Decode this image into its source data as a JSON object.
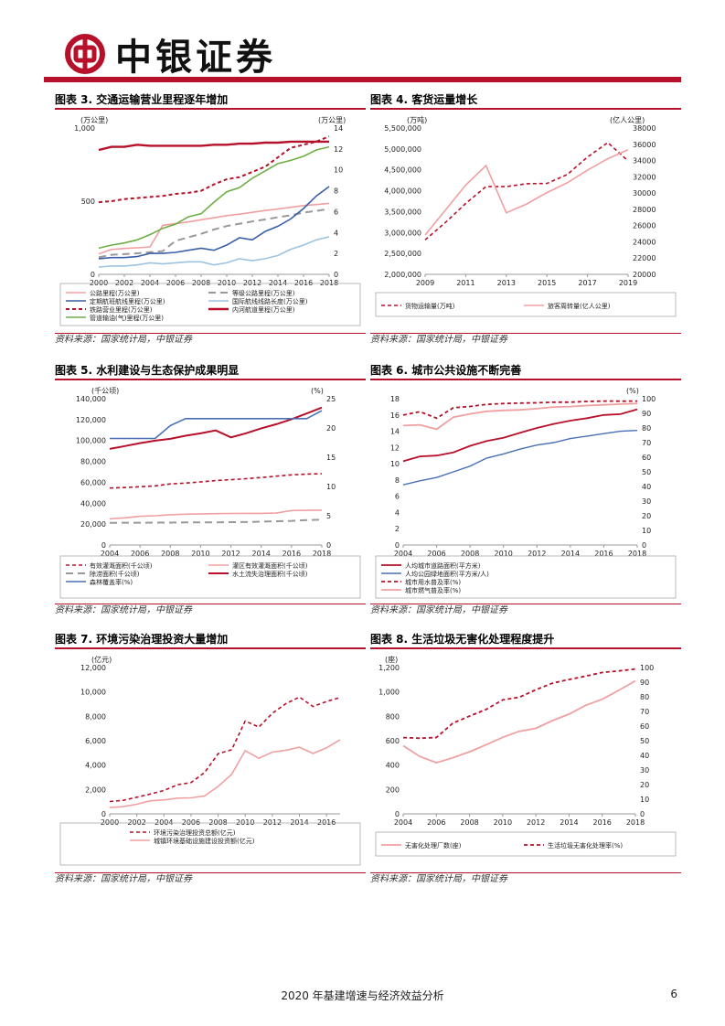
{
  "header": {
    "logo_text": "中银证券",
    "brand_color": "#b7102a"
  },
  "charts": {
    "c3": {
      "title": "图表 3. 交通运输营业里程逐年增加",
      "source": "资料来源：国家统计局，中银证券",
      "left_unit": "(万公里)",
      "right_unit": "(万公里)",
      "x_ticks": [
        "2000",
        "2002",
        "2004",
        "2006",
        "2008",
        "2010",
        "2012",
        "2014",
        "2016",
        "2018"
      ],
      "left_ticks": [
        "0",
        "500",
        "1,000"
      ],
      "right_ticks": [
        "0",
        "2",
        "4",
        "6",
        "8",
        "10",
        "12",
        "14"
      ],
      "legend": [
        "公路里程(万公里)",
        "等级公路里程(万公里)",
        "定期航班航线里程(万公里)",
        "国际航线线路长度(万公里)",
        "铁路营业里程(万公里)",
        "内河航道里程(万公里)",
        "管道输油(气)里程(万公里)"
      ]
    },
    "c4": {
      "title": "图表 4. 客货运量增长",
      "source": "资料来源：国家统计局，中银证券",
      "left_unit": "(万吨)",
      "right_unit": "(亿人公里)",
      "x_ticks": [
        "2009",
        "2011",
        "2013",
        "2015",
        "2017",
        "2019"
      ],
      "left_ticks": [
        "2,000,000",
        "2,500,000",
        "3,000,000",
        "3,500,000",
        "4,000,000",
        "4,500,000",
        "5,000,000",
        "5,500,000"
      ],
      "right_ticks": [
        "20000",
        "22000",
        "24000",
        "26000",
        "28000",
        "30000",
        "32000",
        "34000",
        "36000",
        "38000"
      ],
      "legend": [
        "货物运输量(万吨)",
        "旅客周转量(亿人公里)"
      ]
    },
    "c5": {
      "title": "图表 5. 水利建设与生态保护成果明显",
      "source": "资料来源：国家统计局，中银证券",
      "left_unit": "(千公顷)",
      "right_unit": "(%)",
      "x_ticks": [
        "2004",
        "2006",
        "2008",
        "2010",
        "2012",
        "2014",
        "2016",
        "2018"
      ],
      "left_ticks": [
        "0",
        "20,000",
        "40,000",
        "60,000",
        "80,000",
        "100,000",
        "120,000",
        "140,000"
      ],
      "right_ticks": [
        "0",
        "5",
        "10",
        "15",
        "20",
        "25"
      ],
      "legend": [
        "有效灌溉面积(千公顷)",
        "灌区有效灌溉面积(千公顷)",
        "除涝面积(千公顷)",
        "水土流失治理面积(千公顷)",
        "森林覆盖率(%)"
      ]
    },
    "c6": {
      "title": "图表 6. 城市公共设施不断完善",
      "source": "资料来源：国家统计局，中银证券",
      "right_unit": "(%)",
      "x_ticks": [
        "2004",
        "2006",
        "2008",
        "2010",
        "2012",
        "2014",
        "2016",
        "2018"
      ],
      "left_ticks": [
        "0",
        "2",
        "4",
        "6",
        "8",
        "10",
        "12",
        "14",
        "16",
        "18"
      ],
      "right_ticks": [
        "0",
        "10",
        "20",
        "30",
        "40",
        "50",
        "60",
        "70",
        "80",
        "90",
        "100"
      ],
      "legend": [
        "人均城市道路面积(平方米)",
        "人均公园绿地面积(平方米/人)",
        "城市用水普及率(%)",
        "城市燃气普及率(%)"
      ]
    },
    "c7": {
      "title": "图表 7. 环境污染治理投资大量增加",
      "source": "资料来源：国家统计局，中银证券",
      "left_unit": "(亿元)",
      "x_ticks": [
        "2000",
        "2002",
        "2004",
        "2006",
        "2008",
        "2010",
        "2012",
        "2014",
        "2016"
      ],
      "left_ticks": [
        "0",
        "2,000",
        "4,000",
        "6,000",
        "8,000",
        "10,000",
        "12,000"
      ],
      "legend": [
        "环境污染治理投资总额(亿元)",
        "城镇环境基础设施建设投资额(亿元)"
      ]
    },
    "c8": {
      "title": "图表 8. 生活垃圾无害化处理程度提升",
      "source": "资料来源：国家统计局，中银证券",
      "left_unit": "(座)",
      "x_ticks": [
        "2004",
        "2006",
        "2008",
        "2010",
        "2012",
        "2014",
        "2016",
        "2018"
      ],
      "left_ticks": [
        "0",
        "200",
        "400",
        "600",
        "800",
        "1,000",
        "1,200"
      ],
      "right_ticks": [
        "0",
        "10",
        "20",
        "30",
        "40",
        "50",
        "60",
        "70",
        "80",
        "90",
        "100"
      ],
      "legend": [
        "无害化处理厂数(座)",
        "生活垃圾无害化处理率(%)"
      ]
    }
  },
  "chart_data": [
    {
      "id": "c3",
      "type": "line",
      "title": "交通运输营业里程逐年增加",
      "x": [
        2000,
        2001,
        2002,
        2003,
        2004,
        2005,
        2006,
        2007,
        2008,
        2009,
        2010,
        2011,
        2012,
        2013,
        2014,
        2015,
        2016,
        2017,
        2018
      ],
      "ylim_left": [
        0,
        1000
      ],
      "ylim_right": [
        0,
        14
      ],
      "series": [
        {
          "name": "公路里程(万公里)",
          "axis": "left",
          "color": "#f0a0a0",
          "dash": "",
          "width": 1.6,
          "values": [
            140,
            170,
            177,
            181,
            187,
            335,
            346,
            358,
            373,
            386,
            401,
            411,
            424,
            436,
            446,
            458,
            470,
            477,
            485
          ]
        },
        {
          "name": "等级公路里程(万公里)",
          "axis": "left",
          "color": "#999999",
          "dash": "8,5",
          "width": 2,
          "values": [
            116,
            134,
            138,
            144,
            151,
            159,
            229,
            253,
            277,
            306,
            330,
            346,
            361,
            375,
            390,
            404,
            422,
            434,
            447
          ]
        },
        {
          "name": "定期航班航线里程(万公里)",
          "axis": "right",
          "color": "#3a5fa8",
          "dash": "",
          "width": 1.6,
          "values": [
            1.5,
            1.6,
            1.6,
            1.7,
            2.0,
            2.0,
            2.1,
            2.3,
            2.5,
            2.3,
            2.8,
            3.5,
            3.3,
            4.1,
            4.6,
            5.3,
            6.3,
            7.5,
            8.4
          ]
        },
        {
          "name": "国际航线线路长度(万公里)",
          "axis": "right",
          "color": "#9ec3e0",
          "dash": "",
          "width": 1.6,
          "values": [
            0.7,
            0.8,
            0.8,
            0.9,
            1.1,
            1.0,
            1.1,
            1.2,
            1.2,
            0.9,
            1.1,
            1.5,
            1.3,
            1.5,
            1.8,
            2.4,
            2.8,
            3.3,
            3.6
          ]
        },
        {
          "name": "铁路营业里程(万公里)",
          "axis": "right",
          "color": "#b7102a",
          "dash": "4,3",
          "width": 2,
          "values": [
            6.9,
            7.0,
            7.2,
            7.3,
            7.4,
            7.5,
            7.7,
            7.8,
            8.0,
            8.6,
            9.1,
            9.3,
            9.8,
            10.3,
            11.2,
            12.1,
            12.4,
            12.7,
            13.2
          ]
        },
        {
          "name": "内河航道里程(万公里)",
          "axis": "right",
          "color": "#b7102a",
          "dash": "",
          "width": 2.4,
          "values": [
            11.9,
            12.2,
            12.2,
            12.4,
            12.3,
            12.3,
            12.3,
            12.3,
            12.3,
            12.4,
            12.4,
            12.5,
            12.5,
            12.6,
            12.6,
            12.7,
            12.7,
            12.7,
            12.7
          ]
        },
        {
          "name": "管道输油(气)里程(万公里)",
          "axis": "right",
          "color": "#6fae45",
          "dash": "",
          "width": 1.6,
          "values": [
            2.5,
            2.8,
            3.0,
            3.3,
            3.8,
            4.4,
            4.8,
            5.5,
            5.8,
            6.9,
            7.9,
            8.3,
            9.2,
            9.9,
            10.6,
            10.9,
            11.3,
            11.9,
            12.2
          ]
        }
      ]
    },
    {
      "id": "c4",
      "type": "line",
      "title": "客货运量增长",
      "x": [
        2009,
        2010,
        2011,
        2012,
        2013,
        2014,
        2015,
        2016,
        2017,
        2018,
        2019
      ],
      "ylim_left": [
        2000000,
        5500000
      ],
      "ylim_right": [
        20000,
        38000
      ],
      "series": [
        {
          "name": "货物运输量(万吨)",
          "axis": "left",
          "color": "#b7102a",
          "dash": "4,3",
          "width": 1.6,
          "values": [
            2825000,
            3241000,
            3696000,
            4100000,
            4098000,
            4167000,
            4175000,
            4387000,
            4805000,
            5152000,
            4713000
          ]
        },
        {
          "name": "旅客周转量(亿人公里)",
          "axis": "right",
          "color": "#f0a0a0",
          "dash": "",
          "width": 1.6,
          "values": [
            24835,
            27894,
            30984,
            33383,
            27572,
            28647,
            30058,
            31258,
            32813,
            34218,
            35349
          ]
        }
      ]
    },
    {
      "id": "c5",
      "type": "line",
      "title": "水利建设与生态保护成果明显",
      "x": [
        2004,
        2005,
        2006,
        2007,
        2008,
        2009,
        2010,
        2011,
        2012,
        2013,
        2014,
        2015,
        2016,
        2017,
        2018
      ],
      "ylim_left": [
        0,
        140000
      ],
      "ylim_right": [
        0,
        25
      ],
      "series": [
        {
          "name": "有效灌溉面积(千公顷)",
          "axis": "left",
          "color": "#b7102a",
          "dash": "4,3",
          "width": 1.6,
          "values": [
            54478,
            55029,
            55751,
            56518,
            58472,
            59261,
            60348,
            61682,
            62491,
            63473,
            64540,
            65873,
            67141,
            67816,
            68272
          ]
        },
        {
          "name": "灌区有效灌溉面积(千公顷)",
          "axis": "left",
          "color": "#f0a0a0",
          "dash": "",
          "width": 1.6,
          "values": [
            25000,
            26000,
            27500,
            28000,
            29000,
            29500,
            29700,
            30000,
            30200,
            30300,
            30300,
            30500,
            33000,
            33200,
            33300
          ]
        },
        {
          "name": "除涝面积(千公顷)",
          "axis": "left",
          "color": "#999999",
          "dash": "8,5",
          "width": 2,
          "values": [
            21198,
            21340,
            21376,
            21419,
            21425,
            21584,
            21692,
            21722,
            21857,
            21943,
            22369,
            22713,
            23067,
            23824,
            24262
          ]
        },
        {
          "name": "水土流失治理面积(千公顷)",
          "axis": "left",
          "color": "#b7102a",
          "dash": "",
          "width": 2,
          "values": [
            92000,
            94650,
            97500,
            99870,
            101587,
            104545,
            106800,
            109664,
            103000,
            106892,
            111609,
            115578,
            120412,
            125839,
            131532
          ]
        },
        {
          "name": "森林覆盖率(%)",
          "axis": "right",
          "color": "#4a6fb5",
          "dash": "",
          "width": 1.6,
          "values": [
            18.2,
            18.2,
            18.2,
            18.2,
            20.4,
            21.6,
            21.6,
            21.6,
            21.6,
            21.6,
            21.6,
            21.6,
            21.6,
            21.6,
            22.96
          ]
        }
      ]
    },
    {
      "id": "c6",
      "type": "line",
      "title": "城市公共设施不断完善",
      "x": [
        2004,
        2005,
        2006,
        2007,
        2008,
        2009,
        2010,
        2011,
        2012,
        2013,
        2014,
        2015,
        2016,
        2017,
        2018
      ],
      "ylim_left": [
        0,
        18
      ],
      "ylim_right": [
        0,
        100
      ],
      "series": [
        {
          "name": "人均城市道路面积(平方米)",
          "axis": "left",
          "color": "#b7102a",
          "dash": "",
          "width": 1.8,
          "values": [
            10.3,
            10.9,
            11.0,
            11.4,
            12.2,
            12.8,
            13.2,
            13.8,
            14.4,
            14.9,
            15.3,
            15.6,
            16.0,
            16.1,
            16.7
          ]
        },
        {
          "name": "人均公园绿地面积(平方米/人)",
          "axis": "left",
          "color": "#4a6fb5",
          "dash": "",
          "width": 1.4,
          "values": [
            7.4,
            7.9,
            8.3,
            9.0,
            9.7,
            10.7,
            11.2,
            11.8,
            12.3,
            12.6,
            13.1,
            13.4,
            13.7,
            14.0,
            14.1
          ]
        },
        {
          "name": "城市用水普及率(%)",
          "axis": "right",
          "color": "#b7102a",
          "dash": "4,3",
          "width": 1.8,
          "values": [
            88.8,
            91.1,
            86.7,
            93.8,
            94.7,
            96.1,
            96.7,
            97.0,
            97.2,
            97.6,
            97.6,
            98.1,
            98.4,
            98.3,
            98.4
          ]
        },
        {
          "name": "城市燃气普及率(%)",
          "axis": "right",
          "color": "#f0a0a0",
          "dash": "",
          "width": 1.8,
          "values": [
            81.6,
            82.1,
            79.1,
            87.4,
            89.6,
            91.4,
            92.0,
            92.4,
            93.2,
            94.3,
            94.6,
            95.3,
            95.8,
            96.3,
            96.7
          ]
        }
      ]
    },
    {
      "id": "c7",
      "type": "line",
      "title": "环境污染治理投资大量增加",
      "x": [
        2000,
        2001,
        2002,
        2003,
        2004,
        2005,
        2006,
        2007,
        2008,
        2009,
        2010,
        2011,
        2012,
        2013,
        2014,
        2015,
        2016,
        2017
      ],
      "ylim_left": [
        0,
        12000
      ],
      "series": [
        {
          "name": "环境污染治理投资总额(亿元)",
          "axis": "left",
          "color": "#b7102a",
          "dash": "4,3",
          "width": 1.6,
          "values": [
            1015,
            1107,
            1367,
            1627,
            1910,
            2388,
            2568,
            3387,
            4937,
            5258,
            7612,
            7114,
            8253,
            9037,
            9576,
            8806,
            9220,
            9539
          ]
        },
        {
          "name": "城镇环境基础设施建设投资额(亿元)",
          "axis": "left",
          "color": "#f0a0a0",
          "dash": "",
          "width": 1.6,
          "values": [
            516,
            596,
            786,
            1072,
            1141,
            1289,
            1315,
            1468,
            2248,
            3245,
            5182,
            4558,
            5063,
            5223,
            5464,
            4947,
            5412,
            6086
          ]
        }
      ]
    },
    {
      "id": "c8",
      "type": "line",
      "title": "生活垃圾无害化处理程度提升",
      "x": [
        2004,
        2005,
        2006,
        2007,
        2008,
        2009,
        2010,
        2011,
        2012,
        2013,
        2014,
        2015,
        2016,
        2017,
        2018
      ],
      "ylim_left": [
        0,
        1200
      ],
      "ylim_right": [
        0,
        100
      ],
      "series": [
        {
          "name": "无害化处理厂数(座)",
          "axis": "left",
          "color": "#f0a0a0",
          "dash": "",
          "width": 1.8,
          "values": [
            559,
            471,
            419,
            460,
            509,
            567,
            628,
            677,
            701,
            765,
            818,
            890,
            940,
            1013,
            1091
          ]
        },
        {
          "name": "生活垃圾无害化处理率(%)",
          "axis": "right",
          "color": "#b7102a",
          "dash": "4,3",
          "width": 1.8,
          "values": [
            52.1,
            51.7,
            52.2,
            62.0,
            66.8,
            71.4,
            77.9,
            79.7,
            84.8,
            89.3,
            91.8,
            94.1,
            96.6,
            97.7,
            99.0
          ]
        }
      ]
    }
  ],
  "footer": {
    "title": "2020 年基建增速与经济效益分析",
    "page": "6"
  }
}
